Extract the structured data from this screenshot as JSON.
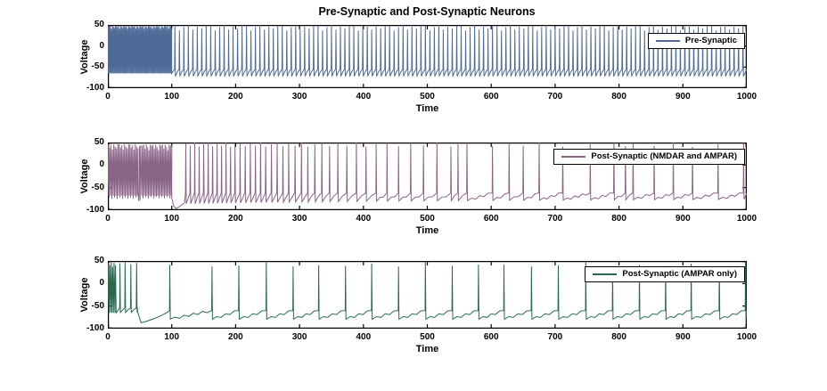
{
  "figure": {
    "title": "Pre-Synaptic and Post-Synaptic Neurons",
    "background": "#ffffff",
    "axis_color": "#000000"
  },
  "chart_data": [
    {
      "type": "line",
      "legend_label": "Pre-Synaptic",
      "legend_position": "top-right-inside",
      "xlabel": "Time",
      "ylabel": "Voltage",
      "xlim": [
        0,
        1000
      ],
      "ylim": [
        -100,
        50
      ],
      "xticks": [
        0,
        100,
        200,
        300,
        400,
        500,
        600,
        700,
        800,
        900,
        1000
      ],
      "yticks": [
        50,
        0,
        -50,
        -100
      ],
      "grid": false,
      "color": "#4e6a96",
      "signal": {
        "segments": [
          {
            "kind": "dense",
            "start": 0,
            "end": 100,
            "lo": -65,
            "hi": 47,
            "period": 1.6,
            "hi_jitter": [
              0,
              -2,
              0,
              -6,
              0,
              -1,
              -4,
              0
            ],
            "lo_jitter": [
              0
            ]
          },
          {
            "kind": "spikes",
            "uniform": {
              "start": 105,
              "end": 1000,
              "interval": 7
            },
            "peak_cycle": [
              48,
              37,
              45,
              50,
              39,
              46,
              42,
              49
            ],
            "hypo": -72,
            "rest": -55,
            "wiggle_amp": 2,
            "wiggle_period": 3.5
          }
        ]
      }
    },
    {
      "type": "line",
      "legend_label": "Post-Synaptic (NMDAR and AMPAR)",
      "legend_position": "top-right-inside",
      "xlabel": "Time",
      "ylabel": "Voltage",
      "xlim": [
        0,
        1000
      ],
      "ylim": [
        -100,
        50
      ],
      "xticks": [
        0,
        100,
        200,
        300,
        400,
        500,
        600,
        700,
        800,
        900,
        1000
      ],
      "yticks": [
        50,
        0,
        -50,
        -100
      ],
      "grid": false,
      "color": "#8a6486",
      "signal": {
        "segments": [
          {
            "kind": "dense",
            "start": 0,
            "end": 47,
            "lo": -68,
            "hi": 46,
            "period": 2.1,
            "hi_jitter": [
              0,
              -7,
              -2,
              -12,
              0,
              -5,
              -9,
              0
            ],
            "lo_jitter": [
              0,
              -4,
              0,
              -7
            ]
          },
          {
            "kind": "poly",
            "points": [
              [
                47,
                -60
              ],
              [
                48.5,
                -80
              ],
              [
                49.5,
                42
              ],
              [
                50.5,
                -78
              ],
              [
                51.5,
                44
              ],
              [
                53,
                -66
              ]
            ]
          },
          {
            "kind": "dense",
            "start": 53,
            "end": 100,
            "lo": -68,
            "hi": 45,
            "period": 2.1,
            "hi_jitter": [
              -2,
              0,
              -9,
              0,
              -5,
              -12,
              0
            ],
            "lo_jitter": [
              0,
              -6,
              0,
              -3
            ]
          },
          {
            "kind": "poly",
            "points": [
              [
                100,
                -72
              ],
              [
                103,
                -91
              ],
              [
                107,
                -96
              ],
              [
                112,
                -92
              ],
              [
                118,
                -86
              ],
              [
                120,
                -84
              ]
            ]
          },
          {
            "kind": "spikes",
            "times": [
              122,
              129,
              136,
              143,
              150,
              157,
              164,
              171,
              178,
              185,
              192,
              199,
              207,
              215,
              223,
              231,
              239,
              247,
              256,
              265,
              274,
              283,
              293,
              303,
              313,
              324,
              335,
              347,
              360,
              374,
              389,
              404,
              420,
              437,
              455,
              474,
              494,
              515,
              537,
              548,
              562,
              602,
              628,
              650,
              675,
              712,
              755,
              792,
              810,
              822,
              855,
              885,
              915,
              955,
              995
            ],
            "peak_cycle": [
              47,
              43,
              50,
              41,
              46,
              49,
              42
            ],
            "hypo_start": -86,
            "hypo_end": -76,
            "rest": -62,
            "wiggle_amp": 2.5,
            "wiggle_period": 6
          }
        ]
      }
    },
    {
      "type": "line",
      "legend_label": "Post-Synaptic (AMPAR only)",
      "legend_position": "top-right-inside",
      "xlabel": "Time",
      "ylabel": "Voltage",
      "xlim": [
        0,
        1000
      ],
      "ylim": [
        -100,
        50
      ],
      "xticks": [
        0,
        100,
        200,
        300,
        400,
        500,
        600,
        700,
        800,
        900,
        1000
      ],
      "yticks": [
        50,
        0,
        -50,
        -100
      ],
      "grid": false,
      "color": "#27694b",
      "signal": {
        "segments": [
          {
            "kind": "dense",
            "start": 0,
            "end": 13,
            "lo": -65,
            "hi": 46,
            "period": 2.2,
            "hi_jitter": [
              0,
              -5,
              0,
              -9
            ],
            "lo_jitter": [
              0
            ]
          },
          {
            "kind": "spikes",
            "times": [
              19,
              27,
              36,
              45
            ],
            "peak_cycle": [
              45,
              47,
              43,
              46
            ],
            "hypo": -64,
            "rest": -54,
            "wiggle_amp": 1,
            "wiggle_period": 5,
            "tail_end": 46.5
          },
          {
            "kind": "poly",
            "points": [
              [
                46.5,
                -62
              ],
              [
                52,
                -87
              ],
              [
                60,
                -84
              ],
              [
                72,
                -78
              ],
              [
                85,
                -70
              ],
              [
                94,
                -63
              ]
            ]
          },
          {
            "kind": "spikes",
            "times": [
              97,
              163,
              205,
              248,
              290,
              330,
              372,
              413,
              455,
              497,
              539,
              580,
              620,
              663,
              705,
              748,
              790,
              832,
              873,
              913,
              957,
              998
            ],
            "peak_cycle": [
              42,
              38,
              40,
              50,
              38,
              41,
              39,
              44,
              38,
              48,
              39,
              42
            ],
            "hypo": -79,
            "rest": -60,
            "wiggle_amp": 2.5,
            "wiggle_period": 7
          }
        ]
      }
    }
  ]
}
